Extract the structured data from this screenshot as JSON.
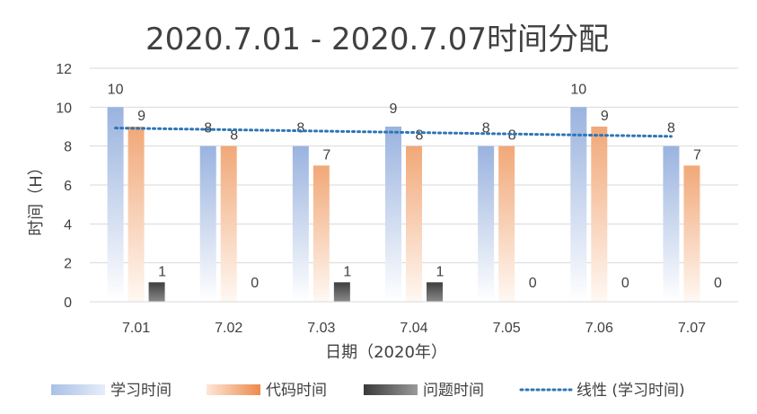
{
  "chart_data": {
    "type": "bar",
    "title": "2020.7.01 - 2020.7.07时间分配",
    "xlabel": "日期（2020年）",
    "ylabel": "时间（H）",
    "ylim": [
      0,
      12
    ],
    "yticks": [
      0,
      2,
      4,
      6,
      8,
      10,
      12
    ],
    "grid": true,
    "legend_position": "bottom",
    "categories": [
      "7.01",
      "7.02",
      "7.03",
      "7.04",
      "7.05",
      "7.06",
      "7.07"
    ],
    "series": [
      {
        "name": "学习时间",
        "values": [
          10,
          8,
          8,
          9,
          8,
          10,
          8
        ],
        "color": "#4472c4"
      },
      {
        "name": "代码时间",
        "values": [
          9,
          8,
          7,
          8,
          8,
          9,
          7
        ],
        "color": "#ed7d31"
      },
      {
        "name": "问题时间",
        "values": [
          1,
          0,
          1,
          1,
          0,
          0,
          0
        ],
        "color": "#404040"
      }
    ],
    "trendline": {
      "name": "线性 (学习时间)",
      "of_series": "学习时间",
      "kind": "linear",
      "color": "#2e75b6"
    }
  }
}
